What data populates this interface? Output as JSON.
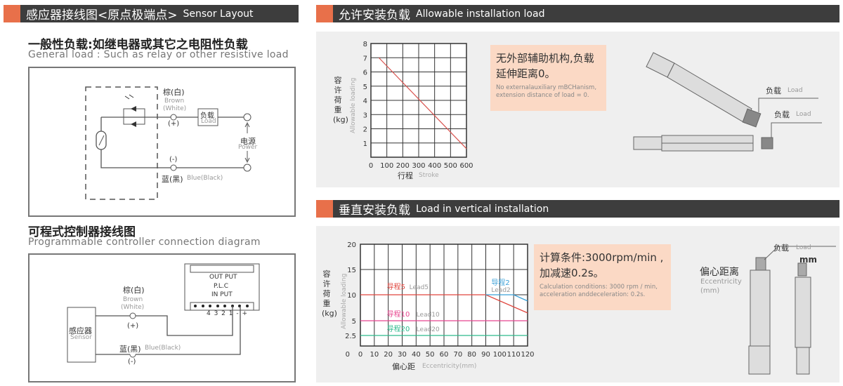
{
  "colors": {
    "accent": "#e8704a",
    "header_bg": "#3d3d3d",
    "lead5": "#e0463e",
    "lead2": "#3aa0d8",
    "lead10": "#e8458f",
    "lead20": "#2cba8c",
    "curve": "#d9534f"
  },
  "left": {
    "header": {
      "zh": "感应器接线图<原点极端点>",
      "en": "Sensor Layout"
    },
    "general": {
      "title": "一般性负载:如继电器或其它之电阻性负载",
      "subtitle": "General load : Such as relay or other resistive load",
      "brown_zh": "棕(白)",
      "brown_en": "Brown",
      "white_en": "(White)",
      "plus": "(+)",
      "minus": "(-)",
      "load_zh": "负载",
      "load_en": "Load",
      "power_zh": "电源",
      "power_en": "Power",
      "blue_zh": "蓝(黑)",
      "blue_en": "Blue(Black)"
    },
    "plc": {
      "title": "可程式控制器接线图",
      "subtitle": "Programmable controller connection diagram",
      "out": "OUT PUT",
      "plc": "P.L.C",
      "in": "IN PUT",
      "terminals": "4 3 2 1 - +",
      "brown_zh": "棕(白)",
      "brown_en": "Brown",
      "white_en": "(White)",
      "plus": "(+)",
      "minus": "(-)",
      "sensor_zh": "感应器",
      "sensor_en": "Sensor",
      "blue_zh": "蓝(黑)",
      "blue_en": "Blue(Black)"
    }
  },
  "right": {
    "allowable": {
      "header": {
        "zh": "允许安装负载",
        "en": "Allowable installation load"
      },
      "note": {
        "zh": "无外部辅助机构,负载延伸距离0。",
        "en": "No externalauxiliary mBCHanism, extension distance of load = 0."
      },
      "load_labels": [
        {
          "zh": "负载",
          "en": "Load"
        },
        {
          "zh": "负载",
          "en": "Load"
        }
      ]
    },
    "vertical": {
      "header": {
        "zh": "垂直安装负载",
        "en": "Load in vertical installation"
      },
      "note": {
        "zh": "计算条件:3000rpm/min ,加减速0.2s。",
        "en": "Calculation conditions: 3000 rpm / min, acceleration anddeceleration: 0.2s."
      },
      "load": {
        "zh": "负载",
        "en": "Load"
      },
      "mm": "mm",
      "ecc": {
        "zh": "偏心距离",
        "en": "Eccentricity",
        "unit": "(mm)"
      }
    }
  },
  "chart_data": [
    {
      "type": "line",
      "ylabel_zh": "容许荷重(kg)",
      "ylabel_en": "Allowable loading",
      "xlabel_zh": "行程",
      "xlabel_en": "Stroke",
      "xlim": [
        0,
        600
      ],
      "ylim": [
        0,
        8
      ],
      "grid": true,
      "xticks": [
        "0",
        "100",
        "200",
        "300",
        "400",
        "500",
        "600"
      ],
      "yticks": [
        "1",
        "2",
        "3",
        "4",
        "5",
        "6",
        "7",
        "8"
      ],
      "series": [
        {
          "x": [
            50,
            600
          ],
          "y": [
            7,
            0.6
          ]
        }
      ]
    },
    {
      "type": "line",
      "ylabel_zh": "容许荷重(kg)",
      "ylabel_en": "Allowable loading",
      "xlabel_zh": "偏心距",
      "xlabel_en": "Eccentricity(mm)",
      "xlim": [
        0,
        120
      ],
      "ylim": [
        0,
        20
      ],
      "grid": true,
      "xticks": [
        "0",
        "10",
        "20",
        "30",
        "40",
        "50",
        "60",
        "70",
        "80",
        "90",
        "100",
        "110",
        "120"
      ],
      "yticks": [
        "2.5",
        "5",
        "10",
        "15",
        "20"
      ],
      "series": [
        {
          "name": "导程5 Lead5",
          "zh": "导程5",
          "en": "Lead5",
          "x": [
            0,
            90,
            120
          ],
          "y": [
            10,
            10,
            6.5
          ]
        },
        {
          "name": "导程2 Lead2",
          "zh": "导程2",
          "en": "Lead2",
          "x": [
            90,
            110,
            120
          ],
          "y": [
            10,
            10,
            8.8
          ]
        },
        {
          "name": "导程10 Lead10",
          "zh": "导程10",
          "en": "Lead10",
          "x": [
            0,
            120
          ],
          "y": [
            5,
            5
          ]
        },
        {
          "name": "导程20 Lead20",
          "zh": "导程20",
          "en": "Lead20",
          "x": [
            0,
            120
          ],
          "y": [
            2.5,
            2.5
          ]
        }
      ]
    }
  ]
}
